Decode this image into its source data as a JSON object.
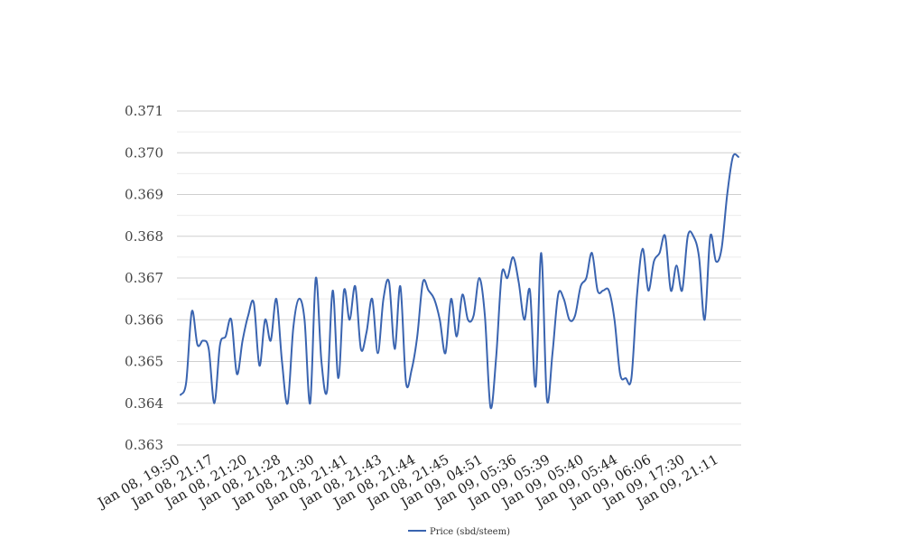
{
  "chart_data": {
    "type": "line",
    "title": "",
    "xlabel": "",
    "ylabel": "",
    "ylim": [
      0.363,
      0.371
    ],
    "grid": true,
    "legend_position": "bottom-center",
    "line_color": "#3a64b0",
    "y_ticks": [
      "0.363",
      "0.364",
      "0.365",
      "0.366",
      "0.367",
      "0.368",
      "0.369",
      "0.370",
      "0.371"
    ],
    "x_tick_labels": [
      "Jan 08, 19:50",
      "Jan 08, 21:17",
      "Jan 08, 21:20",
      "Jan 08, 21:28",
      "Jan 08, 21:30",
      "Jan 08, 21:41",
      "Jan 08, 21:43",
      "Jan 08, 21:44",
      "Jan 08, 21:45",
      "Jan 09, 04:51",
      "Jan 09, 05:36",
      "Jan 09, 05:39",
      "Jan 09, 05:40",
      "Jan 09, 05:44",
      "Jan 09, 06:06",
      "Jan 09, 17:30",
      "Jan 09, 21:11"
    ],
    "series": [
      {
        "name": "Price (sbd/steem)",
        "values": [
          0.3642,
          0.3645,
          0.3662,
          0.3654,
          0.3655,
          0.3653,
          0.364,
          0.3654,
          0.3656,
          0.366,
          0.3647,
          0.3655,
          0.3661,
          0.3664,
          0.3649,
          0.366,
          0.3655,
          0.3665,
          0.365,
          0.364,
          0.3658,
          0.3665,
          0.366,
          0.364,
          0.367,
          0.365,
          0.3643,
          0.3667,
          0.3646,
          0.3667,
          0.366,
          0.3668,
          0.3653,
          0.3657,
          0.3665,
          0.3652,
          0.3665,
          0.3669,
          0.3653,
          0.3668,
          0.3645,
          0.3648,
          0.3656,
          0.3669,
          0.3667,
          0.3665,
          0.366,
          0.3652,
          0.3665,
          0.3656,
          0.3666,
          0.366,
          0.3661,
          0.367,
          0.3661,
          0.3639,
          0.3651,
          0.3671,
          0.367,
          0.3675,
          0.3669,
          0.366,
          0.3667,
          0.3644,
          0.3676,
          0.3641,
          0.3652,
          0.3666,
          0.3665,
          0.366,
          0.3661,
          0.3668,
          0.367,
          0.3676,
          0.3667,
          0.3667,
          0.3667,
          0.366,
          0.3647,
          0.3646,
          0.3646,
          0.3666,
          0.3677,
          0.3667,
          0.3674,
          0.3676,
          0.368,
          0.3667,
          0.3673,
          0.3667,
          0.368,
          0.368,
          0.3675,
          0.366,
          0.368,
          0.3674,
          0.3677,
          0.369,
          0.3699,
          0.3699
        ]
      }
    ]
  }
}
